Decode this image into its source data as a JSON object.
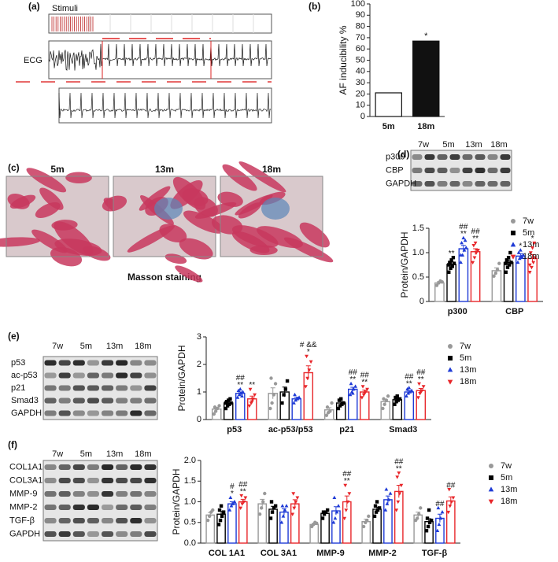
{
  "panel_labels": [
    "(a)",
    "(b)",
    "(c)",
    "(d)",
    "(e)",
    "(f)"
  ],
  "ecg": {
    "stimuli_label": "Stimuli",
    "ecg_label": "ECG"
  },
  "histology": {
    "titles": [
      "5m",
      "13m",
      "18m"
    ],
    "caption": "Masson staining"
  },
  "blots": [
    {
      "lanes": [
        "7w",
        "5m",
        "13m",
        "18m"
      ],
      "rows": [
        "p300",
        "CBP",
        "GAPDH"
      ]
    },
    {
      "lanes": [
        "7w",
        "5m",
        "13m",
        "18m"
      ],
      "rows": [
        "p53",
        "ac-p53",
        "p21",
        "Smad3",
        "GAPDH"
      ]
    },
    {
      "lanes": [
        "7w",
        "5m",
        "13m",
        "18m"
      ],
      "rows": [
        "COL1A1",
        "COL3A1",
        "MMP-9",
        "MMP-2",
        "TGF-β",
        "GAPDH"
      ]
    }
  ],
  "chart_data": [
    {
      "type": "bar",
      "ylabel": "AF inducibility %",
      "categories": [
        "5m",
        "18m"
      ],
      "values": [
        21,
        67
      ],
      "colors": [
        "#ffffff",
        "#111111"
      ],
      "annotations": [
        null,
        "*"
      ],
      "ylim": [
        0,
        100
      ],
      "yticks": [
        0,
        10,
        20,
        30,
        40,
        50,
        60,
        70,
        80,
        90,
        100
      ]
    },
    {
      "type": "bar",
      "ylabel": "Protein/GAPDH",
      "categories": [
        "p300",
        "CBP"
      ],
      "ylim": [
        0,
        1.5
      ],
      "yticks": [
        0,
        0.5,
        {
          "value": 1,
          "label": "1.0"
        },
        1.5
      ],
      "series": [
        {
          "name": "7w",
          "color": "#999999",
          "marker": "circle",
          "values": [
            0.38,
            0.63
          ],
          "errors": [
            0.03,
            0.06
          ],
          "points": [
            [
              0.33,
              0.38,
              0.42,
              0.4
            ],
            [
              0.52,
              0.58,
              0.65,
              0.78
            ]
          ]
        },
        {
          "name": "5m",
          "color": "#000000",
          "marker": "square",
          "values": [
            0.76,
            0.8
          ],
          "errors": [
            0.05,
            0.05
          ],
          "points": [
            [
              0.6,
              0.68,
              0.72,
              0.78,
              0.8,
              0.85,
              0.9,
              0.75
            ],
            [
              0.6,
              0.7,
              0.75,
              0.8,
              0.85,
              0.9,
              1.0,
              0.78
            ]
          ],
          "annotations": [
            [
              "**"
            ],
            null
          ]
        },
        {
          "name": "13m",
          "color": "#1f3bd6",
          "marker": "triangle-up",
          "values": [
            1.08,
            0.93
          ],
          "errors": [
            0.07,
            0.05
          ],
          "points": [
            [
              0.8,
              0.95,
              1.05,
              1.1,
              1.2,
              1.3,
              1.25,
              0.95
            ],
            [
              0.8,
              0.88,
              0.92,
              0.95,
              1.0,
              1.05,
              0.9
            ]
          ],
          "annotations": [
            [
              "##",
              "**"
            ],
            [
              "*"
            ]
          ]
        },
        {
          "name": "18m",
          "color": "#e8262a",
          "marker": "triangle-down",
          "values": [
            1.02,
            0.88
          ],
          "errors": [
            0.06,
            0.08
          ],
          "points": [
            [
              0.8,
              0.9,
              1.0,
              1.05,
              1.15,
              1.2,
              1.05
            ],
            [
              0.6,
              0.7,
              0.8,
              0.9,
              1.0,
              1.1,
              1.2,
              0.75
            ]
          ],
          "annotations": [
            [
              "##",
              "**"
            ],
            [
              "*"
            ]
          ]
        }
      ]
    },
    {
      "type": "bar",
      "ylabel": "Protein/GAPDH",
      "categories": [
        "p53",
        "ac-p53/p53",
        "p21",
        "Smad3"
      ],
      "ylim": [
        0,
        3
      ],
      "yticks": [
        0,
        1,
        2,
        3
      ],
      "series": [
        {
          "name": "7w",
          "color": "#999999",
          "marker": "circle",
          "values": [
            0.38,
            0.95,
            0.35,
            0.65
          ],
          "errors": [
            0.06,
            0.2,
            0.08,
            0.08
          ],
          "points": [
            [
              0.2,
              0.3,
              0.4,
              0.5,
              0.45
            ],
            [
              0.4,
              0.6,
              0.9,
              1.3,
              1.5
            ],
            [
              0.15,
              0.25,
              0.3,
              0.6,
              0.45
            ],
            [
              0.4,
              0.55,
              0.7,
              0.85,
              0.75
            ]
          ]
        },
        {
          "name": "5m",
          "color": "#000000",
          "marker": "square",
          "values": [
            0.6,
            1.0,
            0.6,
            0.72
          ],
          "errors": [
            0.05,
            0.18,
            0.05,
            0.05
          ],
          "points": [
            [
              0.4,
              0.5,
              0.55,
              0.6,
              0.65,
              0.7,
              0.75,
              0.6
            ],
            [
              0.6,
              0.9,
              1.1,
              1.4
            ],
            [
              0.4,
              0.5,
              0.55,
              0.6,
              0.7,
              0.75,
              0.6
            ],
            [
              0.55,
              0.65,
              0.7,
              0.75,
              0.8,
              0.85
            ]
          ]
        },
        {
          "name": "13m",
          "color": "#1f3bd6",
          "marker": "triangle-up",
          "values": [
            0.95,
            0.75,
            1.1,
            1.0
          ],
          "errors": [
            0.05,
            0.06,
            0.07,
            0.05
          ],
          "points": [
            [
              0.8,
              0.9,
              0.95,
              1.0,
              1.05,
              1.1,
              0.85
            ],
            [
              0.6,
              0.7,
              0.75,
              0.8,
              0.9
            ],
            [
              0.9,
              1.0,
              1.1,
              1.2,
              1.3,
              0.95
            ],
            [
              0.85,
              0.95,
              1.0,
              1.05,
              1.1,
              1.15
            ]
          ],
          "annotations": [
            [
              "##",
              "**"
            ],
            null,
            [
              "##",
              "**"
            ],
            [
              "##",
              "**"
            ]
          ]
        },
        {
          "name": "18m",
          "color": "#e8262a",
          "marker": "triangle-down",
          "values": [
            0.75,
            1.7,
            1.0,
            1.05
          ],
          "errors": [
            0.1,
            0.25,
            0.07,
            0.08
          ],
          "points": [
            [
              0.5,
              0.6,
              0.75,
              0.9,
              1.1,
              0.65
            ],
            [
              1.2,
              1.5,
              1.8,
              2.1,
              2.3
            ],
            [
              0.8,
              0.9,
              1.0,
              1.1,
              1.2,
              0.95
            ],
            [
              0.8,
              0.95,
              1.05,
              1.2,
              1.3,
              1.0
            ]
          ],
          "annotations": [
            [
              "**"
            ],
            [
              "# &&",
              "*"
            ],
            [
              "##",
              "**"
            ],
            [
              "##",
              "**"
            ]
          ]
        }
      ]
    },
    {
      "type": "bar",
      "ylabel": "Protein/GAPDH",
      "categories": [
        "COL 1A1",
        "COL 3A1",
        "MMP-9",
        "MMP-2",
        "TGF-β"
      ],
      "ylim": [
        0,
        2
      ],
      "yticks": [
        {
          "value": 0,
          "label": "0.0"
        },
        0.5,
        {
          "value": 1,
          "label": "1.0"
        },
        1.5,
        {
          "value": 2,
          "label": "2.0"
        }
      ],
      "series": [
        {
          "name": "7w",
          "color": "#999999",
          "marker": "circle",
          "values": [
            0.68,
            0.95,
            0.45,
            0.52,
            0.68
          ],
          "errors": [
            0.06,
            0.11,
            0.03,
            0.06,
            0.07
          ],
          "points": [
            [
              0.55,
              0.65,
              0.75,
              0.8
            ],
            [
              0.7,
              0.85,
              1.0,
              1.2
            ],
            [
              0.4,
              0.45,
              0.5,
              0.48
            ],
            [
              0.4,
              0.5,
              0.55,
              0.65
            ],
            [
              0.55,
              0.6,
              0.7,
              0.85
            ]
          ]
        },
        {
          "name": "5m",
          "color": "#000000",
          "marker": "square",
          "values": [
            0.7,
            0.82,
            0.72,
            0.82,
            0.52
          ],
          "errors": [
            0.07,
            0.07,
            0.04,
            0.05,
            0.07
          ],
          "points": [
            [
              0.45,
              0.55,
              0.65,
              0.75,
              0.8,
              0.9
            ],
            [
              0.6,
              0.75,
              0.85,
              0.9,
              1.0
            ],
            [
              0.6,
              0.7,
              0.75,
              0.8,
              0.75
            ],
            [
              0.65,
              0.75,
              0.8,
              0.85,
              0.9,
              1.0
            ],
            [
              0.3,
              0.4,
              0.5,
              0.55,
              0.6,
              0.8
            ]
          ]
        },
        {
          "name": "13m",
          "color": "#1f3bd6",
          "marker": "triangle-up",
          "values": [
            0.95,
            0.75,
            0.78,
            1.05,
            0.6
          ],
          "errors": [
            0.05,
            0.08,
            0.1,
            0.09,
            0.1
          ],
          "points": [
            [
              0.8,
              0.9,
              0.95,
              1.0,
              1.1
            ],
            [
              0.5,
              0.65,
              0.8,
              0.9,
              0.9
            ],
            [
              0.5,
              0.6,
              0.75,
              0.9,
              1.1
            ],
            [
              0.8,
              0.95,
              1.05,
              1.2,
              1.3
            ],
            [
              0.3,
              0.45,
              0.6,
              0.75,
              0.85
            ]
          ],
          "annotations": [
            [
              "#",
              "*"
            ],
            null,
            null,
            null,
            [
              "##"
            ]
          ]
        },
        {
          "name": "18m",
          "color": "#e8262a",
          "marker": "triangle-down",
          "values": [
            1.0,
            0.95,
            1.0,
            1.25,
            1.02
          ],
          "errors": [
            0.06,
            0.1,
            0.14,
            0.15,
            0.1
          ],
          "points": [
            [
              0.85,
              0.95,
              1.0,
              1.1,
              1.15
            ],
            [
              0.7,
              0.85,
              1.0,
              1.1,
              1.2
            ],
            [
              0.6,
              0.8,
              1.0,
              1.2,
              1.4
            ],
            [
              0.8,
              1.0,
              1.2,
              1.4,
              1.6,
              1.7
            ],
            [
              0.75,
              0.9,
              1.0,
              1.1,
              1.3
            ]
          ],
          "annotations": [
            [
              "##",
              "**"
            ],
            null,
            [
              "##",
              "**"
            ],
            [
              "##",
              "**"
            ],
            [
              "##"
            ]
          ]
        }
      ]
    }
  ]
}
